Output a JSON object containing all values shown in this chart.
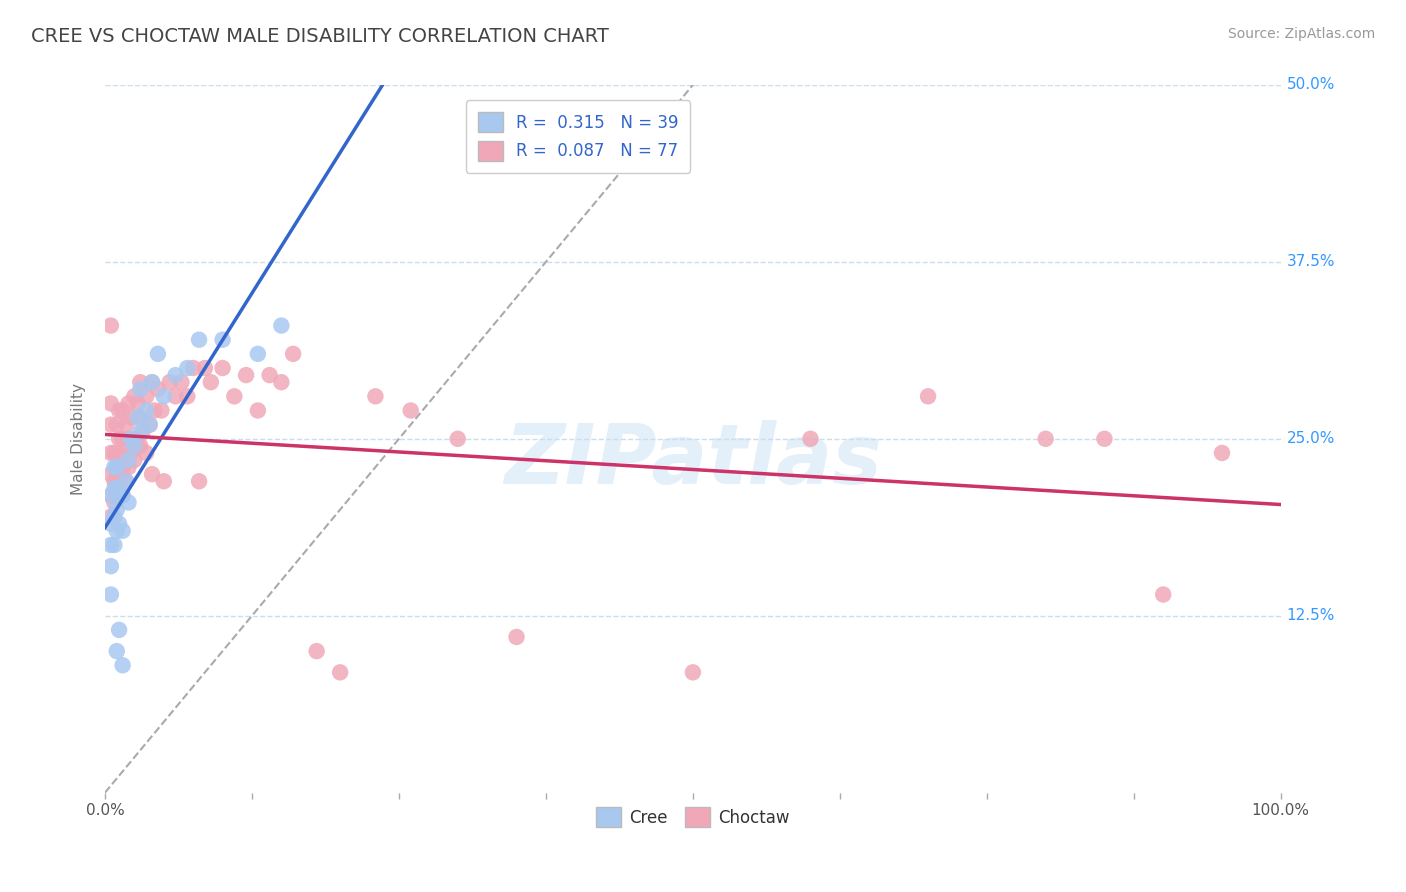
{
  "title": "CREE VS CHOCTAW MALE DISABILITY CORRELATION CHART",
  "source_text": "Source: ZipAtlas.com",
  "ylabel": "Male Disability",
  "xlim": [
    0,
    1.0
  ],
  "ylim": [
    0,
    0.5
  ],
  "xticks": [
    0.0,
    0.125,
    0.25,
    0.375,
    0.5,
    0.625,
    0.75,
    0.875,
    1.0
  ],
  "xticklabels": [
    "0.0%",
    "",
    "",
    "",
    "",
    "",
    "",
    "",
    "100.0%"
  ],
  "ytick_positions": [
    0.125,
    0.25,
    0.375,
    0.5
  ],
  "yticklabels": [
    "12.5%",
    "25.0%",
    "37.5%",
    "50.0%"
  ],
  "cree_R": 0.315,
  "cree_N": 39,
  "choctaw_R": 0.087,
  "choctaw_N": 77,
  "cree_color": "#a8c8f0",
  "choctaw_color": "#f0a8b8",
  "cree_line_color": "#3366cc",
  "choctaw_line_color": "#cc3366",
  "ref_line_color": "#aaaaaa",
  "background_color": "#ffffff",
  "grid_color": "#ccddee",
  "watermark": "ZIPatlas",
  "cree_x": [
    0.005,
    0.005,
    0.005,
    0.005,
    0.005,
    0.008,
    0.008,
    0.008,
    0.008,
    0.01,
    0.01,
    0.01,
    0.01,
    0.01,
    0.012,
    0.012,
    0.012,
    0.015,
    0.015,
    0.015,
    0.018,
    0.02,
    0.02,
    0.022,
    0.025,
    0.028,
    0.03,
    0.03,
    0.035,
    0.038,
    0.04,
    0.045,
    0.05,
    0.06,
    0.07,
    0.08,
    0.1,
    0.13,
    0.15
  ],
  "cree_y": [
    0.14,
    0.16,
    0.175,
    0.19,
    0.21,
    0.175,
    0.195,
    0.215,
    0.23,
    0.185,
    0.2,
    0.215,
    0.23,
    0.1,
    0.19,
    0.21,
    0.115,
    0.185,
    0.21,
    0.09,
    0.22,
    0.205,
    0.235,
    0.25,
    0.245,
    0.265,
    0.255,
    0.285,
    0.27,
    0.26,
    0.29,
    0.31,
    0.28,
    0.295,
    0.3,
    0.32,
    0.32,
    0.31,
    0.33
  ],
  "choctaw_x": [
    0.005,
    0.005,
    0.005,
    0.005,
    0.005,
    0.005,
    0.005,
    0.008,
    0.008,
    0.008,
    0.01,
    0.01,
    0.01,
    0.01,
    0.012,
    0.012,
    0.012,
    0.012,
    0.014,
    0.015,
    0.015,
    0.015,
    0.015,
    0.018,
    0.018,
    0.018,
    0.02,
    0.02,
    0.02,
    0.022,
    0.022,
    0.025,
    0.025,
    0.025,
    0.028,
    0.028,
    0.03,
    0.03,
    0.03,
    0.032,
    0.035,
    0.035,
    0.038,
    0.04,
    0.04,
    0.042,
    0.045,
    0.048,
    0.05,
    0.055,
    0.06,
    0.065,
    0.07,
    0.075,
    0.08,
    0.085,
    0.09,
    0.1,
    0.11,
    0.12,
    0.13,
    0.14,
    0.15,
    0.16,
    0.18,
    0.2,
    0.23,
    0.26,
    0.3,
    0.35,
    0.5,
    0.6,
    0.7,
    0.8,
    0.85,
    0.9,
    0.95
  ],
  "choctaw_y": [
    0.195,
    0.21,
    0.225,
    0.24,
    0.26,
    0.275,
    0.33,
    0.205,
    0.22,
    0.24,
    0.21,
    0.225,
    0.24,
    0.26,
    0.215,
    0.23,
    0.25,
    0.27,
    0.225,
    0.21,
    0.23,
    0.25,
    0.27,
    0.22,
    0.24,
    0.26,
    0.23,
    0.25,
    0.275,
    0.24,
    0.265,
    0.235,
    0.25,
    0.28,
    0.245,
    0.275,
    0.245,
    0.265,
    0.29,
    0.255,
    0.24,
    0.28,
    0.26,
    0.225,
    0.29,
    0.27,
    0.285,
    0.27,
    0.22,
    0.29,
    0.28,
    0.29,
    0.28,
    0.3,
    0.22,
    0.3,
    0.29,
    0.3,
    0.28,
    0.295,
    0.27,
    0.295,
    0.29,
    0.31,
    0.1,
    0.085,
    0.28,
    0.27,
    0.25,
    0.11,
    0.085,
    0.25,
    0.28,
    0.25,
    0.25,
    0.14,
    0.24
  ]
}
